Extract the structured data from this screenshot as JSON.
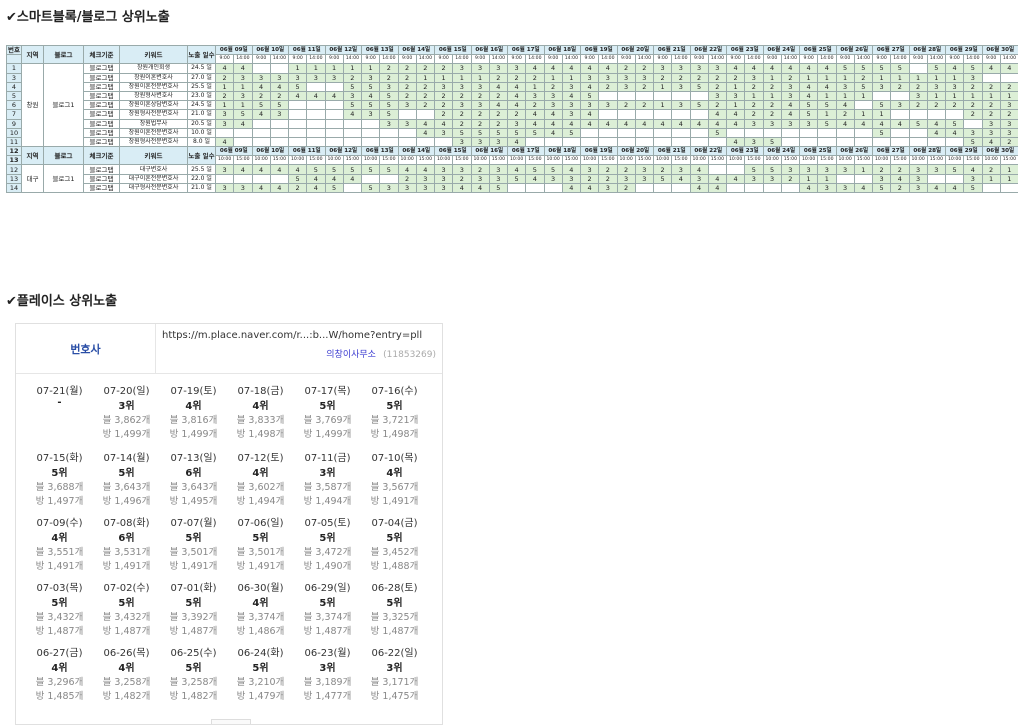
{
  "sections": {
    "blog_title": "✔스마트블록/블로그 상위노출",
    "place_title": "✔플레이스 상위노출"
  },
  "blog_table": {
    "headers": {
      "no": "번호",
      "region": "지역",
      "blog": "블로그",
      "check": "체크기준",
      "keyword": "키워드",
      "exposure_days": "노출 일수"
    },
    "dates": [
      "06월 09일",
      "06월 10일",
      "06월 11일",
      "06월 12일",
      "06월 13일",
      "06월 14일",
      "06월 15일",
      "06월 16일",
      "06월 17일",
      "06월 18일",
      "06월 19일",
      "06월 20일",
      "06월 21일",
      "06월 22일",
      "06월 23일",
      "06월 24일",
      "06월 25일",
      "06월 26일",
      "06월 27일",
      "06월 28일",
      "06월 29일",
      "06월 30일"
    ],
    "times_top": [
      "9:00",
      "14:00"
    ],
    "times_bottom": [
      "10:00",
      "15:00"
    ],
    "group1": {
      "region": "창원",
      "blog": "블로그1",
      "rows": [
        {
          "no": "1",
          "check": "블로그탭",
          "kw": "창원개인회생",
          "days": "24.5 일",
          "v": [
            "4",
            "4",
            "",
            "",
            "1",
            "1",
            "1",
            "1",
            "1",
            "2",
            "2",
            "2",
            "2",
            "3",
            "3",
            "3",
            "3",
            "4",
            "4",
            "4",
            "4",
            "4",
            "2",
            "2",
            "3",
            "3",
            "3",
            "3",
            "4",
            "4",
            "4",
            "4",
            "4",
            "4",
            "5",
            "5",
            "5",
            "5",
            "",
            "5",
            "4",
            "5",
            "4",
            "4",
            "4",
            ""
          ]
        },
        {
          "no": "3",
          "check": "블로그탭",
          "kw": "창원이혼변호사",
          "days": "27.0 일",
          "v": [
            "2",
            "3",
            "3",
            "3",
            "3",
            "3",
            "3",
            "2",
            "3",
            "2",
            "2",
            "1",
            "1",
            "1",
            "1",
            "2",
            "2",
            "2",
            "1",
            "1",
            "3",
            "3",
            "3",
            "3",
            "2",
            "2",
            "2",
            "2",
            "2",
            "3",
            "1",
            "2",
            "1",
            "1",
            "1",
            "2",
            "1",
            "1",
            "1",
            "1",
            "1",
            "3",
            "",
            "",
            "",
            ""
          ]
        },
        {
          "no": "4",
          "check": "블로그탭",
          "kw": "창원이혼전문변호사",
          "days": "25.5 일",
          "v": [
            "1",
            "1",
            "4",
            "4",
            "5",
            "",
            "",
            "5",
            "5",
            "3",
            "2",
            "2",
            "3",
            "3",
            "3",
            "4",
            "4",
            "1",
            "2",
            "3",
            "4",
            "2",
            "3",
            "2",
            "1",
            "3",
            "5",
            "2",
            "1",
            "2",
            "2",
            "3",
            "4",
            "4",
            "3",
            "5",
            "3",
            "2",
            "2",
            "3",
            "3",
            "2",
            "2",
            "2",
            "2",
            ""
          ]
        },
        {
          "no": "5",
          "check": "블로그탭",
          "kw": "창원형사변호사",
          "days": "23.0 일",
          "v": [
            "2",
            "3",
            "2",
            "2",
            "4",
            "4",
            "4",
            "3",
            "4",
            "5",
            "2",
            "2",
            "2",
            "2",
            "2",
            "2",
            "4",
            "3",
            "3",
            "4",
            "5",
            "",
            "",
            "",
            "",
            "",
            "",
            "3",
            "3",
            "1",
            "1",
            "3",
            "4",
            "1",
            "1",
            "1",
            "",
            "",
            "3",
            "1",
            "1",
            "1",
            "1",
            "1",
            "2",
            ""
          ]
        },
        {
          "no": "6",
          "check": "블로그탭",
          "kw": "창원이혼상담변호사",
          "days": "24.5 일",
          "v": [
            "1",
            "1",
            "5",
            "5",
            "",
            "",
            "",
            "5",
            "5",
            "5",
            "3",
            "2",
            "2",
            "3",
            "3",
            "4",
            "4",
            "2",
            "3",
            "3",
            "3",
            "3",
            "2",
            "2",
            "1",
            "3",
            "5",
            "2",
            "1",
            "2",
            "2",
            "4",
            "5",
            "5",
            "4",
            "",
            "5",
            "3",
            "2",
            "2",
            "2",
            "2",
            "2",
            "3",
            "",
            ""
          ]
        },
        {
          "no": "7",
          "check": "블로그탭",
          "kw": "창원형사전문변호사",
          "days": "21.0 일",
          "v": [
            "3",
            "5",
            "4",
            "3",
            "",
            "",
            "",
            "4",
            "3",
            "5",
            "",
            "",
            "2",
            "2",
            "2",
            "2",
            "2",
            "4",
            "4",
            "3",
            "4",
            "",
            "",
            "",
            "",
            "",
            "",
            "4",
            "4",
            "2",
            "2",
            "4",
            "5",
            "1",
            "2",
            "1",
            "1",
            "",
            "",
            "",
            "",
            "2",
            "2",
            "2",
            "2",
            ""
          ]
        }
      ]
    },
    "group1b": {
      "rows": [
        {
          "no": "9",
          "check": "블로그탭",
          "kw": "창원법무사",
          "days": "20.5 일",
          "v": [
            "3",
            "4",
            "",
            "",
            "",
            "",
            "",
            "",
            "",
            "3",
            "3",
            "4",
            "4",
            "2",
            "2",
            "2",
            "3",
            "4",
            "4",
            "4",
            "4",
            "4",
            "4",
            "4",
            "4",
            "4",
            "4",
            "4",
            "4",
            "3",
            "3",
            "3",
            "3",
            "5",
            "4",
            "4",
            "4",
            "4",
            "5",
            "4",
            "5",
            "",
            "3",
            "3",
            "3",
            "2"
          ]
        },
        {
          "no": "10",
          "check": "블로그탭",
          "kw": "창원이혼전문변호사",
          "days": "10.0 일",
          "v": [
            "",
            "",
            "",
            "",
            "",
            "",
            "",
            "",
            "",
            "",
            "",
            "4",
            "3",
            "5",
            "5",
            "5",
            "5",
            "5",
            "4",
            "5",
            "",
            "",
            "",
            "",
            "",
            "",
            "",
            "5",
            "",
            "",
            "",
            "",
            "",
            "",
            "",
            "",
            "5",
            "",
            "",
            "4",
            "4",
            "3",
            "3",
            "3",
            "4",
            ""
          ]
        },
        {
          "no": "11",
          "check": "블로그탭",
          "kw": "창원형사전문변호사",
          "days": "8.0 일",
          "v": [
            "4",
            "",
            "",
            "",
            "",
            "",
            "",
            "",
            "",
            "",
            "",
            "",
            "",
            "3",
            "3",
            "3",
            "4",
            "",
            "",
            "",
            "",
            "",
            "",
            "",
            "",
            "",
            "",
            "",
            "4",
            "3",
            "5",
            "",
            "",
            "",
            "",
            "",
            "",
            "",
            "",
            "",
            "",
            "5",
            "4",
            "2",
            "",
            ""
          ]
        }
      ]
    },
    "group2": {
      "region": "대구",
      "blog": "블로그1",
      "rows": [
        {
          "no": "12",
          "check": "블로그탭",
          "kw": "대구변호사",
          "days": "25.5 일",
          "v": [
            "3",
            "4",
            "4",
            "4",
            "4",
            "5",
            "5",
            "5",
            "5",
            "5",
            "4",
            "4",
            "3",
            "3",
            "2",
            "3",
            "4",
            "5",
            "5",
            "4",
            "3",
            "2",
            "2",
            "3",
            "2",
            "3",
            "4",
            "",
            "",
            "5",
            "5",
            "3",
            "3",
            "3",
            "3",
            "1",
            "2",
            "2",
            "3",
            "3",
            "5",
            "4",
            "2",
            "1",
            "",
            ""
          ]
        },
        {
          "no": "13",
          "check": "블로그탭",
          "kw": "대구이혼전문변호사",
          "days": "22.0 일",
          "v": [
            "",
            "",
            "",
            "",
            "5",
            "4",
            "4",
            "4",
            "",
            "",
            "2",
            "3",
            "3",
            "2",
            "3",
            "3",
            "5",
            "4",
            "3",
            "3",
            "2",
            "2",
            "3",
            "3",
            "5",
            "4",
            "3",
            "4",
            "4",
            "3",
            "3",
            "2",
            "1",
            "1",
            "",
            "",
            "3",
            "4",
            "3",
            "",
            "",
            "3",
            "1",
            "1",
            "1",
            ""
          ]
        },
        {
          "no": "14",
          "check": "블로그탭",
          "kw": "대구형사전문변호사",
          "days": "21.0 일",
          "v": [
            "3",
            "3",
            "4",
            "4",
            "2",
            "4",
            "5",
            "",
            "5",
            "3",
            "3",
            "3",
            "3",
            "4",
            "4",
            "5",
            "",
            "",
            "",
            "4",
            "4",
            "3",
            "2",
            "",
            "",
            "",
            "4",
            "4",
            "",
            "",
            "",
            "",
            "4",
            "3",
            "3",
            "4",
            "5",
            "2",
            "3",
            "4",
            "4",
            "5",
            "",
            "",
            "5",
            ""
          ]
        }
      ]
    }
  },
  "place": {
    "label": "번호사",
    "url": "https://m.place.naver.com/r...:b...W/home?entry=pll",
    "name": "의창이사무소",
    "id": "(11853269)",
    "rows": [
      [
        {
          "d": "07-21(월)",
          "r": "-",
          "b": "",
          "p": ""
        },
        {
          "d": "07-20(일)",
          "r": "3위",
          "b": "블 3,862개",
          "p": "방 1,499개"
        },
        {
          "d": "07-19(토)",
          "r": "4위",
          "b": "블 3,816개",
          "p": "방 1,499개"
        },
        {
          "d": "07-18(금)",
          "r": "4위",
          "b": "블 3,833개",
          "p": "방 1,498개"
        },
        {
          "d": "07-17(목)",
          "r": "5위",
          "b": "블 3,769개",
          "p": "방 1,499개"
        },
        {
          "d": "07-16(수)",
          "r": "5위",
          "b": "블 3,721개",
          "p": "방 1,498개"
        }
      ],
      [
        {
          "d": "07-15(화)",
          "r": "5위",
          "b": "블 3,688개",
          "p": "방 1,497개"
        },
        {
          "d": "07-14(월)",
          "r": "5위",
          "b": "블 3,643개",
          "p": "방 1,496개"
        },
        {
          "d": "07-13(일)",
          "r": "6위",
          "b": "블 3,643개",
          "p": "방 1,495개"
        },
        {
          "d": "07-12(토)",
          "r": "4위",
          "b": "블 3,602개",
          "p": "방 1,494개"
        },
        {
          "d": "07-11(금)",
          "r": "3위",
          "b": "블 3,587개",
          "p": "방 1,494개"
        },
        {
          "d": "07-10(목)",
          "r": "4위",
          "b": "블 3,567개",
          "p": "방 1,491개"
        }
      ],
      [
        {
          "d": "07-09(수)",
          "r": "4위",
          "b": "블 3,551개",
          "p": "방 1,491개"
        },
        {
          "d": "07-08(화)",
          "r": "6위",
          "b": "블 3,531개",
          "p": "방 1,491개"
        },
        {
          "d": "07-07(월)",
          "r": "5위",
          "b": "블 3,501개",
          "p": "방 1,491개"
        },
        {
          "d": "07-06(일)",
          "r": "5위",
          "b": "블 3,501개",
          "p": "방 1,491개"
        },
        {
          "d": "07-05(토)",
          "r": "5위",
          "b": "블 3,472개",
          "p": "방 1,490개"
        },
        {
          "d": "07-04(금)",
          "r": "5위",
          "b": "블 3,452개",
          "p": "방 1,488개"
        }
      ],
      [
        {
          "d": "07-03(목)",
          "r": "5위",
          "b": "블 3,432개",
          "p": "방 1,487개"
        },
        {
          "d": "07-02(수)",
          "r": "5위",
          "b": "블 3,432개",
          "p": "방 1,487개"
        },
        {
          "d": "07-01(화)",
          "r": "5위",
          "b": "블 3,392개",
          "p": "방 1,487개"
        },
        {
          "d": "06-30(월)",
          "r": "4위",
          "b": "블 3,374개",
          "p": "방 1,486개"
        },
        {
          "d": "06-29(일)",
          "r": "5위",
          "b": "블 3,374개",
          "p": "방 1,487개"
        },
        {
          "d": "06-28(토)",
          "r": "5위",
          "b": "블 3,325개",
          "p": "방 1,487개"
        }
      ],
      [
        {
          "d": "06-27(금)",
          "r": "4위",
          "b": "블 3,296개",
          "p": "방 1,485개"
        },
        {
          "d": "06-26(목)",
          "r": "4위",
          "b": "블 3,258개",
          "p": "방 1,482개"
        },
        {
          "d": "06-25(수)",
          "r": "5위",
          "b": "블 3,258개",
          "p": "방 1,482개"
        },
        {
          "d": "06-24(화)",
          "r": "5위",
          "b": "블 3,210개",
          "p": "방 1,479개"
        },
        {
          "d": "06-23(월)",
          "r": "3위",
          "b": "블 3,189개",
          "p": "방 1,477개"
        },
        {
          "d": "06-22(일)",
          "r": "3위",
          "b": "블 3,171개",
          "p": "방 1,475개"
        }
      ]
    ]
  }
}
